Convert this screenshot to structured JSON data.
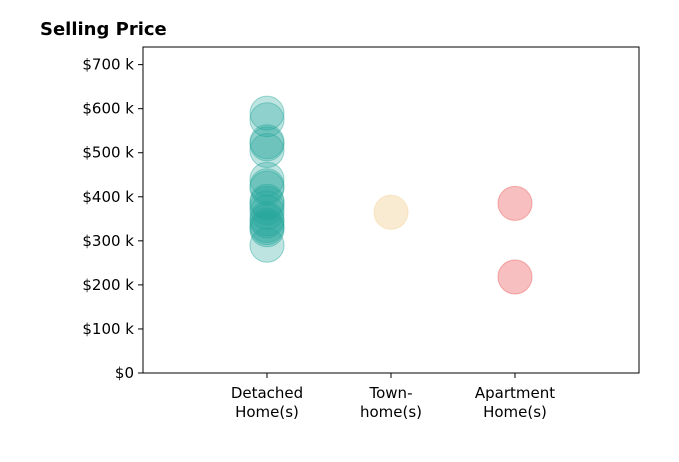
{
  "chart_data": {
    "type": "scatter",
    "title": "Selling Price",
    "xlabel": "",
    "ylabel": "",
    "categories": [
      {
        "lines": [
          "Detached",
          "Home(s)"
        ]
      },
      {
        "lines": [
          "Town-",
          "home(s)"
        ]
      },
      {
        "lines": [
          "Apartment",
          "Home(s)"
        ]
      }
    ],
    "xlim": [
      -1,
      3
    ],
    "ylim": [
      0,
      740000
    ],
    "yticks": [
      {
        "value": 0,
        "label": "$0"
      },
      {
        "value": 100000,
        "label": "$100 k"
      },
      {
        "value": 200000,
        "label": "$200 k"
      },
      {
        "value": 300000,
        "label": "$300 k"
      },
      {
        "value": 400000,
        "label": "$400 k"
      },
      {
        "value": 500000,
        "label": "$500 k"
      },
      {
        "value": 600000,
        "label": "$600 k"
      },
      {
        "value": 700000,
        "label": "$700 k"
      }
    ],
    "grid": false,
    "series": [
      {
        "category_index": 0,
        "color": "#26a69a",
        "opacity": 0.3,
        "values": [
          590000,
          575000,
          525000,
          520000,
          505000,
          440000,
          425000,
          420000,
          390000,
          385000,
          375000,
          365000,
          350000,
          345000,
          335000,
          330000,
          325000,
          290000
        ]
      },
      {
        "category_index": 1,
        "color": "#f5deb3",
        "opacity": 0.6,
        "values": [
          365000
        ]
      },
      {
        "category_index": 2,
        "color": "#f08080",
        "opacity": 0.5,
        "values": [
          385000,
          218000
        ]
      }
    ]
  }
}
